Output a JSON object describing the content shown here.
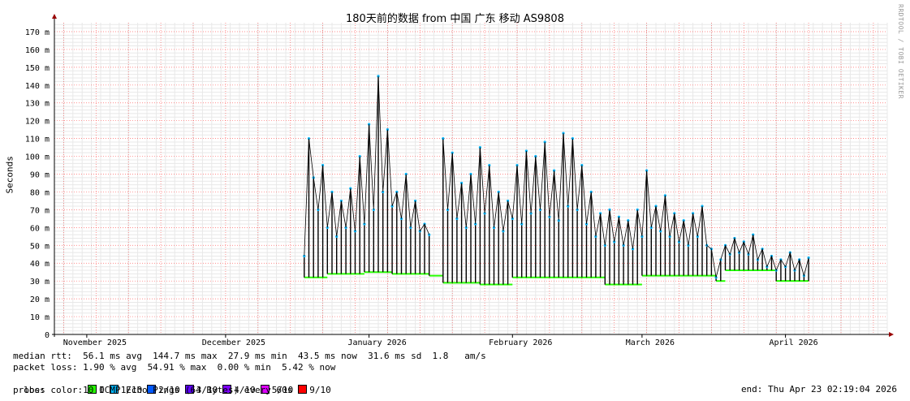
{
  "chart_data": {
    "type": "line",
    "title": "180天前的数据 from 中国 广东 移动 AS9808",
    "ylabel": "Seconds",
    "ylim": [
      0,
      175
    ],
    "y_ticks": [
      {
        "v": 0,
        "label": "0"
      },
      {
        "v": 10,
        "label": "10 m"
      },
      {
        "v": 20,
        "label": "20 m"
      },
      {
        "v": 30,
        "label": "30 m"
      },
      {
        "v": 40,
        "label": "40 m"
      },
      {
        "v": 50,
        "label": "50 m"
      },
      {
        "v": 60,
        "label": "60 m"
      },
      {
        "v": 70,
        "label": "70 m"
      },
      {
        "v": 80,
        "label": "80 m"
      },
      {
        "v": 90,
        "label": "90 m"
      },
      {
        "v": 100,
        "label": "100 m"
      },
      {
        "v": 110,
        "label": "110 m"
      },
      {
        "v": 120,
        "label": "120 m"
      },
      {
        "v": 130,
        "label": "130 m"
      },
      {
        "v": 140,
        "label": "140 m"
      },
      {
        "v": 150,
        "label": "150 m"
      },
      {
        "v": 160,
        "label": "160 m"
      },
      {
        "v": 170,
        "label": "170 m"
      }
    ],
    "x_start": "2025-10-25",
    "x_end": "2026-04-23",
    "x_ticks": [
      {
        "date": "2025-11-01",
        "label": "November 2025"
      },
      {
        "date": "2025-12-01",
        "label": "December 2025"
      },
      {
        "date": "2026-01-01",
        "label": "January 2026"
      },
      {
        "date": "2026-02-01",
        "label": "February 2026"
      },
      {
        "date": "2026-03-01",
        "label": "March 2026"
      },
      {
        "date": "2026-04-01",
        "label": "April 2026"
      }
    ],
    "series": [
      {
        "name": "median rtt",
        "points": [
          [
            "2025-12-18",
            44
          ],
          [
            "2025-12-19",
            110
          ],
          [
            "2025-12-20",
            88
          ],
          [
            "2025-12-21",
            70
          ],
          [
            "2025-12-22",
            95
          ],
          [
            "2025-12-23",
            60
          ],
          [
            "2025-12-24",
            80
          ],
          [
            "2025-12-25",
            55
          ],
          [
            "2025-12-26",
            75
          ],
          [
            "2025-12-27",
            60
          ],
          [
            "2025-12-28",
            82
          ],
          [
            "2025-12-29",
            58
          ],
          [
            "2025-12-30",
            100
          ],
          [
            "2025-12-31",
            62
          ],
          [
            "2026-01-01",
            118
          ],
          [
            "2026-01-02",
            70
          ],
          [
            "2026-01-03",
            145
          ],
          [
            "2026-01-04",
            80
          ],
          [
            "2026-01-05",
            115
          ],
          [
            "2026-01-06",
            72
          ],
          [
            "2026-01-07",
            80
          ],
          [
            "2026-01-08",
            65
          ],
          [
            "2026-01-09",
            90
          ],
          [
            "2026-01-10",
            60
          ],
          [
            "2026-01-11",
            75
          ],
          [
            "2026-01-12",
            58
          ],
          [
            "2026-01-13",
            62
          ],
          [
            "2026-01-14",
            56
          ],
          [
            "2026-01-17",
            110
          ],
          [
            "2026-01-18",
            70
          ],
          [
            "2026-01-19",
            102
          ],
          [
            "2026-01-20",
            65
          ],
          [
            "2026-01-21",
            85
          ],
          [
            "2026-01-22",
            60
          ],
          [
            "2026-01-23",
            90
          ],
          [
            "2026-01-24",
            62
          ],
          [
            "2026-01-25",
            105
          ],
          [
            "2026-01-26",
            68
          ],
          [
            "2026-01-27",
            95
          ],
          [
            "2026-01-28",
            60
          ],
          [
            "2026-01-29",
            80
          ],
          [
            "2026-01-30",
            58
          ],
          [
            "2026-01-31",
            75
          ],
          [
            "2026-02-01",
            65
          ],
          [
            "2026-02-02",
            95
          ],
          [
            "2026-02-03",
            62
          ],
          [
            "2026-02-04",
            103
          ],
          [
            "2026-02-05",
            68
          ],
          [
            "2026-02-06",
            100
          ],
          [
            "2026-02-07",
            70
          ],
          [
            "2026-02-08",
            108
          ],
          [
            "2026-02-09",
            66
          ],
          [
            "2026-02-10",
            92
          ],
          [
            "2026-02-11",
            64
          ],
          [
            "2026-02-12",
            113
          ],
          [
            "2026-02-13",
            72
          ],
          [
            "2026-02-14",
            110
          ],
          [
            "2026-02-15",
            70
          ],
          [
            "2026-02-16",
            95
          ],
          [
            "2026-02-17",
            62
          ],
          [
            "2026-02-18",
            80
          ],
          [
            "2026-02-19",
            55
          ],
          [
            "2026-02-20",
            68
          ],
          [
            "2026-02-21",
            50
          ],
          [
            "2026-02-22",
            70
          ],
          [
            "2026-02-23",
            52
          ],
          [
            "2026-02-24",
            66
          ],
          [
            "2026-02-25",
            50
          ],
          [
            "2026-02-26",
            64
          ],
          [
            "2026-02-27",
            48
          ],
          [
            "2026-02-28",
            70
          ],
          [
            "2026-03-01",
            55
          ],
          [
            "2026-03-02",
            92
          ],
          [
            "2026-03-03",
            60
          ],
          [
            "2026-03-04",
            72
          ],
          [
            "2026-03-05",
            58
          ],
          [
            "2026-03-06",
            78
          ],
          [
            "2026-03-07",
            55
          ],
          [
            "2026-03-08",
            68
          ],
          [
            "2026-03-09",
            52
          ],
          [
            "2026-03-10",
            64
          ],
          [
            "2026-03-11",
            50
          ],
          [
            "2026-03-12",
            68
          ],
          [
            "2026-03-13",
            55
          ],
          [
            "2026-03-14",
            72
          ],
          [
            "2026-03-15",
            50
          ],
          [
            "2026-03-16",
            48
          ],
          [
            "2026-03-17",
            32
          ],
          [
            "2026-03-18",
            42
          ],
          [
            "2026-03-19",
            50
          ],
          [
            "2026-03-20",
            45
          ],
          [
            "2026-03-21",
            54
          ],
          [
            "2026-03-22",
            46
          ],
          [
            "2026-03-23",
            52
          ],
          [
            "2026-03-24",
            45
          ],
          [
            "2026-03-25",
            56
          ],
          [
            "2026-03-26",
            42
          ],
          [
            "2026-03-27",
            48
          ],
          [
            "2026-03-28",
            38
          ],
          [
            "2026-03-29",
            44
          ],
          [
            "2026-03-30",
            36
          ],
          [
            "2026-03-31",
            42
          ],
          [
            "2026-04-01",
            38
          ],
          [
            "2026-04-02",
            46
          ],
          [
            "2026-04-03",
            36
          ],
          [
            "2026-04-04",
            42
          ],
          [
            "2026-04-05",
            33
          ],
          [
            "2026-04-06",
            43
          ]
        ]
      },
      {
        "name": "min rtt",
        "points": [
          [
            "2025-12-18",
            32
          ],
          [
            "2025-12-23",
            34
          ],
          [
            "2025-12-31",
            35
          ],
          [
            "2026-01-06",
            34
          ],
          [
            "2026-01-14",
            33
          ],
          [
            "2026-01-17",
            29
          ],
          [
            "2026-01-25",
            28
          ],
          [
            "2026-02-01",
            32
          ],
          [
            "2026-02-17",
            32
          ],
          [
            "2026-02-21",
            28
          ],
          [
            "2026-03-01",
            33
          ],
          [
            "2026-03-10",
            33
          ],
          [
            "2026-03-16",
            33
          ],
          [
            "2026-03-17",
            30
          ],
          [
            "2026-03-19",
            36
          ],
          [
            "2026-03-28",
            36
          ],
          [
            "2026-03-30",
            30
          ],
          [
            "2026-04-06",
            30
          ]
        ]
      }
    ],
    "colors": {
      "line": "#000000",
      "loss0": "#26ff00",
      "loss1": "#00b8ff",
      "loss2": "#0059ff",
      "loss3": "#5e00ff",
      "loss4": "#7e00ff",
      "loss5": "#dd00ff",
      "loss9": "#ff0000",
      "grid": "#ff0000",
      "arrow": "#990000"
    }
  },
  "stats": {
    "median_rtt": "median rtt:  56.1 ms avg  144.7 ms max  27.9 ms min  43.5 ms now  31.6 ms sd  1.8   am/s",
    "packet_loss": "packet loss: 1.90 % avg  54.91 % max  0.00 % min  5.42 % now",
    "loss_label": "loss color:",
    "loss_items": [
      "0",
      "1/10",
      "2/10",
      "3/10",
      "4/10",
      "5/10",
      "9/10"
    ],
    "probe": "probe:       10 ICMP Echo Pings (64 Bytes) every 60s",
    "end": "end: Thu Apr 23 02:19:04 2026"
  },
  "watermark": "RRDTOOL / TOBI OETIKER"
}
